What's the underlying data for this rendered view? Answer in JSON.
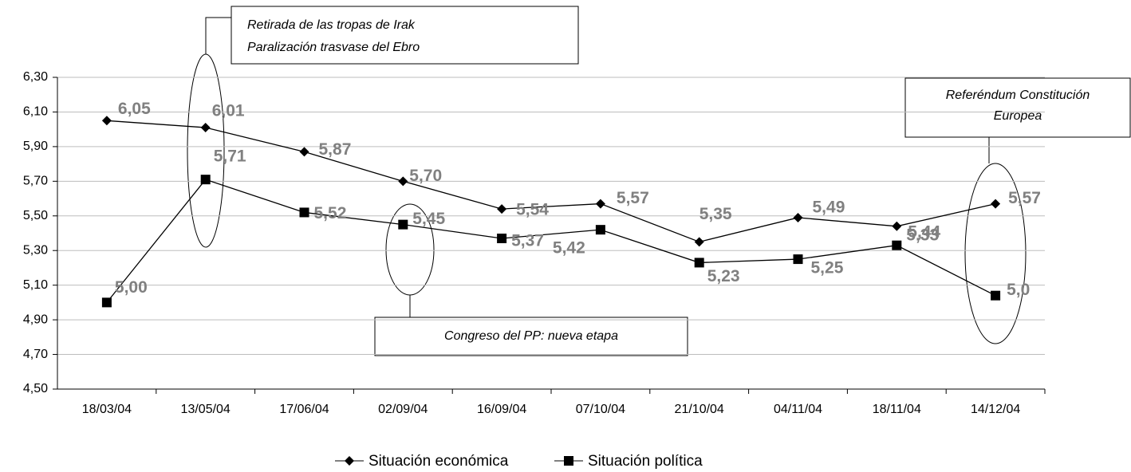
{
  "chart_data": {
    "type": "line",
    "categories": [
      "18/03/04",
      "13/05/04",
      "17/06/04",
      "02/09/04",
      "16/09/04",
      "07/10/04",
      "21/10/04",
      "04/11/04",
      "18/11/04",
      "14/12/04"
    ],
    "series": [
      {
        "name": "Situación económica",
        "color": "#000000",
        "marker": "diamond",
        "values": [
          6.05,
          6.01,
          5.87,
          5.7,
          5.54,
          5.57,
          5.35,
          5.49,
          5.44,
          5.57
        ],
        "value_labels": [
          "6,05",
          "6,01",
          "5,87",
          "5,70",
          "5,54",
          "5,57",
          "5,35",
          "5,49",
          "5,44",
          "5,57"
        ]
      },
      {
        "name": "Situación política",
        "color": "#000000",
        "marker": "square",
        "values": [
          5.0,
          5.71,
          5.52,
          5.45,
          5.37,
          5.42,
          5.23,
          5.25,
          5.33,
          5.04
        ],
        "value_labels": [
          "5,00",
          "5,71",
          "5,52",
          "5,45",
          "5,37",
          "5,42",
          "5,23",
          "5,25",
          "5,33",
          "5,0"
        ]
      }
    ],
    "ylim": [
      4.5,
      6.3
    ],
    "yticks": [
      {
        "value": 4.5,
        "label": "4,50"
      },
      {
        "value": 4.7,
        "label": "4,70"
      },
      {
        "value": 4.9,
        "label": "4,90"
      },
      {
        "value": 5.1,
        "label": "5,10"
      },
      {
        "value": 5.3,
        "label": "5,30"
      },
      {
        "value": 5.5,
        "label": "5,50"
      },
      {
        "value": 5.7,
        "label": "5,70"
      },
      {
        "value": 5.9,
        "label": "5,90"
      },
      {
        "value": 6.1,
        "label": "6,10"
      },
      {
        "value": 6.3,
        "label": "6,30"
      }
    ],
    "grid": true,
    "legend": "bottom",
    "annotations": [
      {
        "lines": [
          "Retirada de las tropas de Irak",
          "Paralización trasvase del Ebro"
        ]
      },
      {
        "lines": [
          "Congreso del PP: nueva etapa"
        ]
      },
      {
        "lines": [
          "Referéndum Constitución",
          "Europea"
        ]
      }
    ]
  }
}
